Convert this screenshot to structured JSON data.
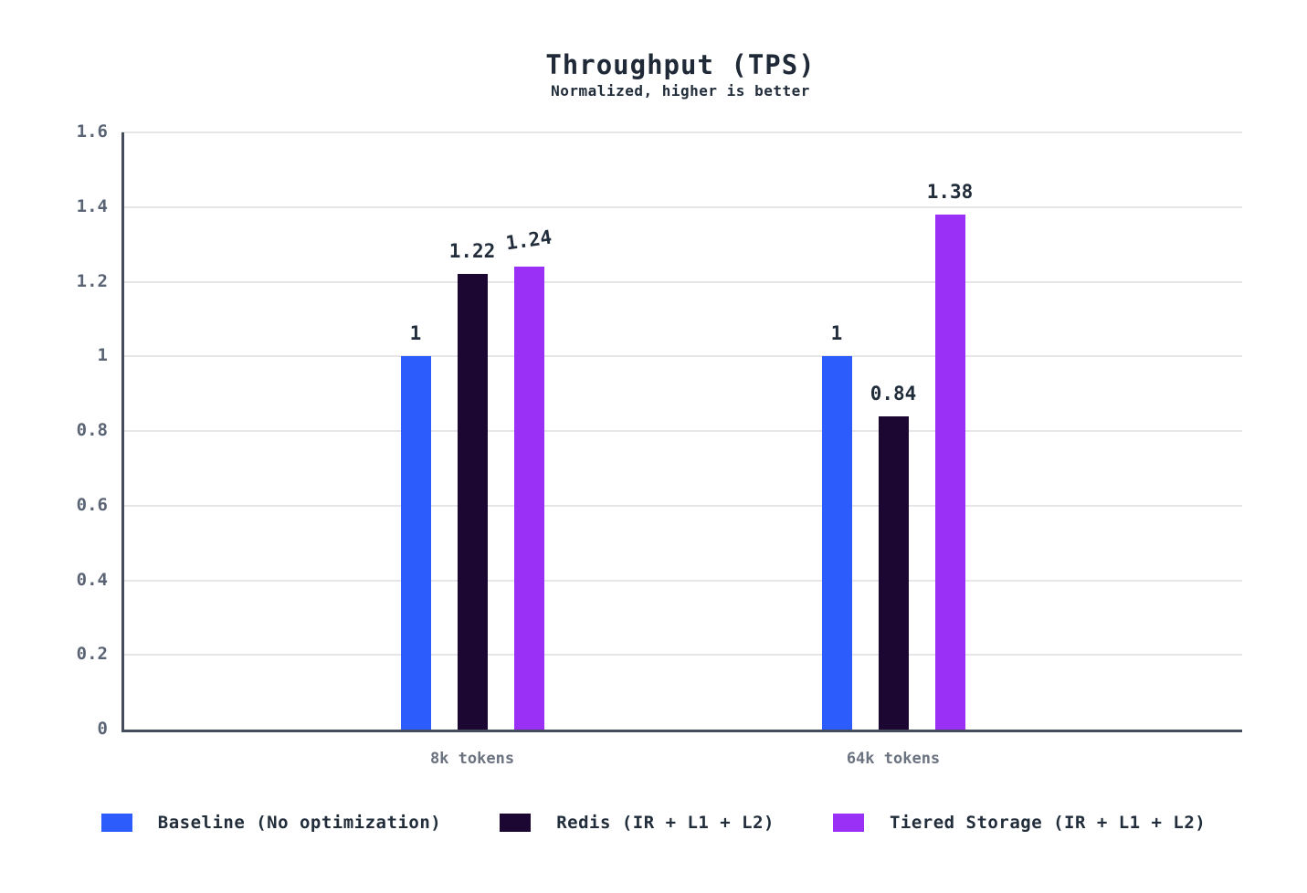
{
  "chart_data": {
    "type": "bar",
    "title": "Throughput (TPS)",
    "subtitle": "Normalized, higher is better",
    "categories": [
      "8k tokens",
      "64k tokens"
    ],
    "series": [
      {
        "name": "Baseline (No optimization)",
        "color": "#2d5cfc",
        "values": [
          1,
          1
        ],
        "value_labels": [
          "1",
          "1"
        ]
      },
      {
        "name": "Redis (IR + L1 + L2)",
        "color": "#1c0733",
        "values": [
          1.22,
          0.84
        ],
        "value_labels": [
          "1.22",
          "0.84"
        ]
      },
      {
        "name": "Tiered Storage (IR + L1 + L2)",
        "color": "#9a2ff5",
        "values": [
          1.24,
          1.38
        ],
        "value_labels": [
          "1.24",
          "1.38"
        ]
      }
    ],
    "y_axis": {
      "min": 0,
      "max": 1.6,
      "tick_step": 0.2,
      "tick_labels": [
        "0",
        "0.2",
        "0.4",
        "0.6",
        "0.8",
        "1",
        "1.2",
        "1.4",
        "1.6"
      ]
    },
    "grid": true,
    "legend_position": "bottom",
    "colors": {
      "background": "#ffffff",
      "axis": "#454d5c",
      "grid": "#e6e6e8",
      "tick_text": "#5a6474",
      "category_text": "#6b7280",
      "title_text": "#1f2937",
      "value_label_text": "#222d3b"
    }
  }
}
